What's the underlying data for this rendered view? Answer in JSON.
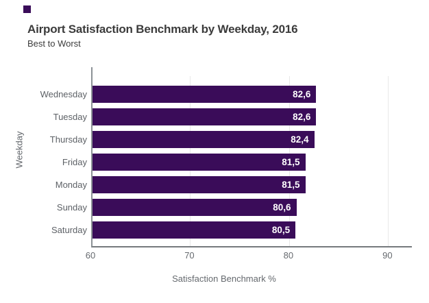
{
  "chart_data": {
    "type": "bar",
    "orientation": "horizontal",
    "title": "Airport Satisfaction Benchmark by Weekday, 2016",
    "subtitle": "Best to Worst",
    "categories": [
      "Wednesday",
      "Tuesday",
      "Thursday",
      "Friday",
      "Monday",
      "Sunday",
      "Saturday"
    ],
    "values": [
      82.6,
      82.6,
      82.4,
      81.5,
      81.5,
      80.6,
      80.5
    ],
    "value_labels": [
      "82,6",
      "82,6",
      "82,4",
      "81,5",
      "81,5",
      "80,6",
      "80,5"
    ],
    "xlabel": "Satisfaction Benchmark %",
    "ylabel": "Weekday",
    "x_ticks": [
      60,
      70,
      80,
      90
    ],
    "xlim": [
      60,
      92.4
    ],
    "sort_order": "descending",
    "grid": "vertical-light",
    "legend": false,
    "decimal_separator": ","
  },
  "colors": {
    "bar": "#3a0c59",
    "value_label": "#ffffff",
    "title_text": "#3b3b3b",
    "axis_text": "#63676c",
    "tick_text": "#65696e",
    "gridline": "#e8e8e8",
    "axis_line_left": "#8c9196",
    "axis_line_bottom": "#75797d",
    "background": "#ffffff"
  }
}
